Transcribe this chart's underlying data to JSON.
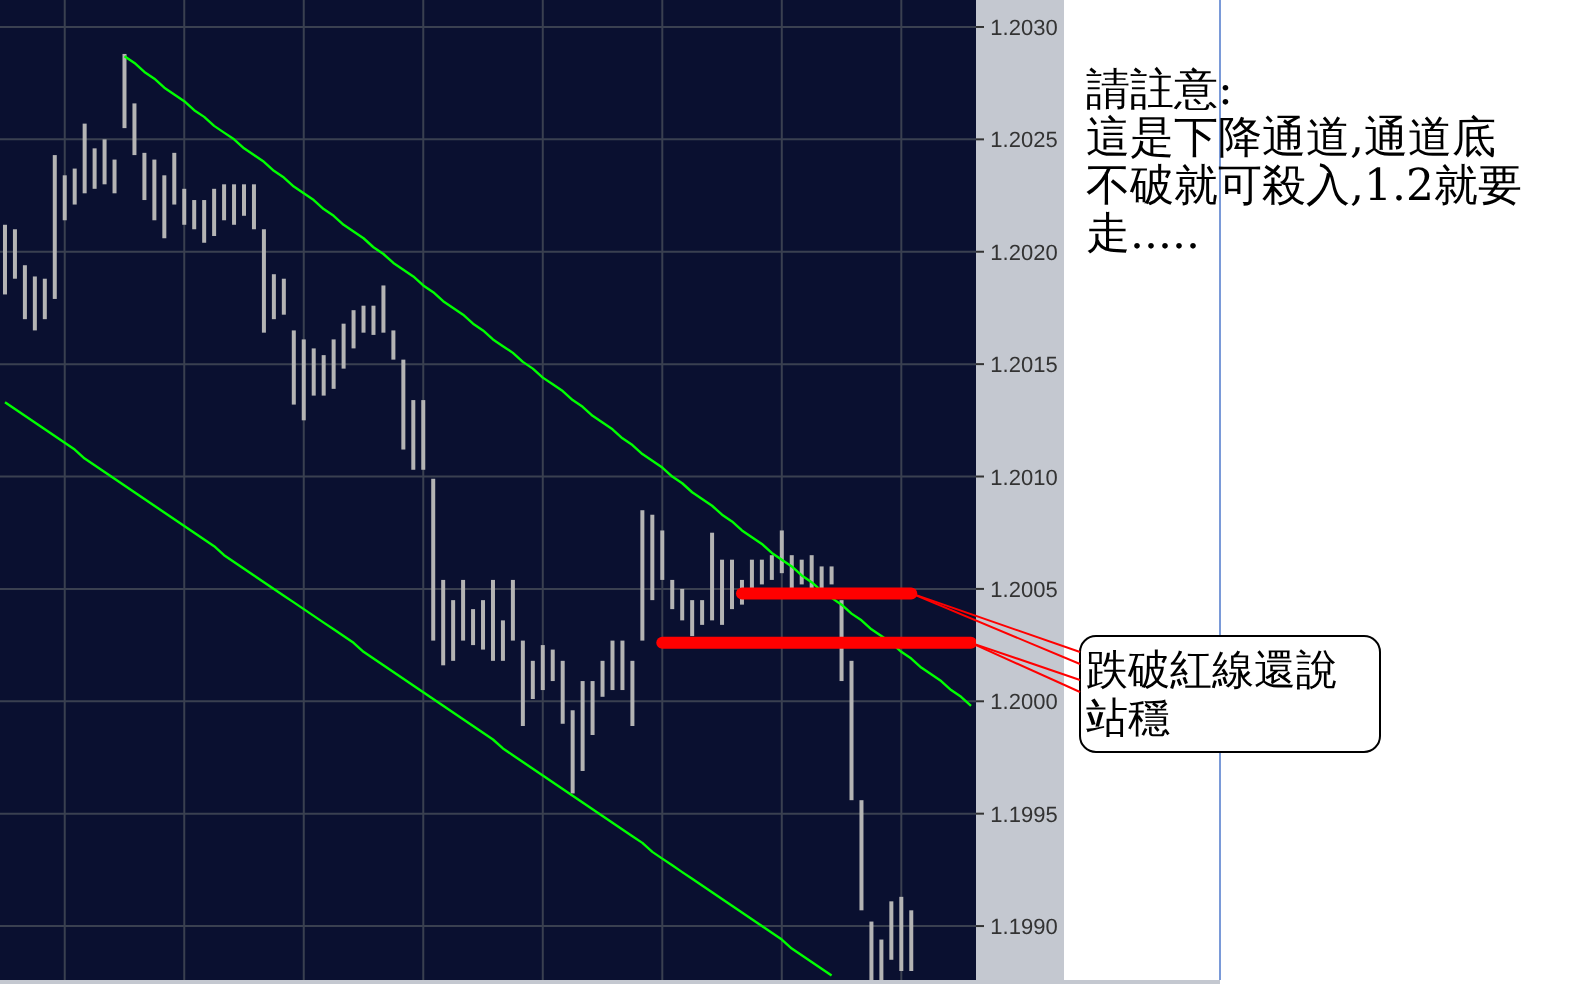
{
  "chart_data": {
    "type": "bar",
    "categories": [
      null,
      null,
      null,
      null,
      null,
      null,
      null,
      null,
      null,
      null,
      null,
      null,
      null,
      null,
      null,
      null,
      null,
      null,
      null,
      null,
      null,
      null,
      null,
      null,
      null,
      null,
      null,
      null,
      null,
      null,
      null,
      null,
      null,
      null,
      null,
      null,
      null,
      null,
      null,
      null,
      null,
      null,
      null,
      null,
      null,
      null,
      null,
      null,
      null,
      null,
      null,
      null,
      null,
      null,
      null,
      null,
      null,
      null,
      null,
      null,
      null,
      null,
      null,
      null,
      null,
      null,
      null,
      null,
      null,
      null,
      null,
      null,
      null,
      null,
      null,
      null,
      null,
      null,
      null,
      null,
      null,
      null,
      null,
      null,
      null,
      null,
      null,
      null,
      null,
      null,
      null,
      null,
      null,
      null,
      null,
      null,
      null,
      null
    ],
    "series": [
      {
        "color": "#b4b4b4",
        "base": [
          1.20181,
          1.20188,
          1.2017,
          1.20165,
          1.2017,
          1.20179,
          1.20214,
          1.20221,
          1.20226,
          1.20228,
          1.2023,
          1.20226,
          1.20255,
          1.20243,
          1.20223,
          1.20214,
          1.20206,
          1.20221,
          1.20212,
          1.2021,
          1.20204,
          1.20207,
          1.20214,
          1.20212,
          1.20216,
          1.2021,
          1.20164,
          1.2017,
          1.20172,
          1.20132,
          1.20125,
          1.20136,
          1.20136,
          1.20139,
          1.20148,
          1.20157,
          1.20164,
          1.20163,
          1.20164,
          1.20152,
          1.20112,
          1.20103,
          1.20103,
          1.20027,
          1.20016,
          1.20018,
          1.20027,
          1.20025,
          1.20023,
          1.20018,
          1.20018,
          1.20027,
          1.19989,
          1.20001,
          1.20005,
          1.20009,
          1.1999,
          1.19959,
          1.19969,
          1.19985,
          1.20002,
          1.20005,
          1.20005,
          1.19989,
          1.20027,
          1.20045,
          1.20054,
          1.20041,
          1.20036,
          1.20029,
          1.20034,
          1.20036,
          1.20034,
          1.20041,
          1.20043,
          1.2005,
          1.20052,
          1.20054,
          1.20057,
          1.2005,
          1.20052,
          1.2005,
          1.2005,
          1.20052,
          1.20009,
          1.19956,
          1.19907,
          1.19876,
          1.19876,
          1.19885,
          1.1988,
          1.1988,
          null,
          null,
          null,
          null,
          null,
          null
        ],
        "values": [
          0.00031,
          0.00022,
          0.00024,
          0.00024,
          0.00018,
          0.00064,
          0.0002,
          0.00016,
          0.00031,
          0.00018,
          0.0002,
          0.00015,
          0.00033,
          0.00023,
          0.00021,
          0.00027,
          0.00028,
          0.00023,
          0.00016,
          0.00013,
          0.00019,
          0.00021,
          0.00016,
          0.00018,
          0.00014,
          0.0002,
          0.00046,
          0.0002,
          0.00016,
          0.00033,
          0.00036,
          0.00021,
          0.00018,
          0.00022,
          0.0002,
          0.00017,
          0.00012,
          0.00013,
          0.00021,
          0.00013,
          0.0004,
          0.00031,
          0.00031,
          0.00072,
          0.00038,
          0.00027,
          0.00027,
          0.00016,
          0.00022,
          0.00036,
          0.00018,
          0.00027,
          0.00038,
          0.00017,
          0.0002,
          0.00014,
          0.00028,
          0.00037,
          0.0004,
          0.00024,
          0.00016,
          0.00022,
          0.00022,
          0.00029,
          0.00058,
          0.00038,
          0.00022,
          0.00013,
          0.00014,
          0.00016,
          0.00011,
          0.00039,
          0.00029,
          0.00022,
          0.00011,
          0.00013,
          0.00011,
          0.00011,
          0.00019,
          0.00015,
          0.00011,
          0.00015,
          0.0001,
          8e-05,
          0.00036,
          0.00062,
          0.00049,
          0.00026,
          0.00018,
          0.00026,
          0.00033,
          0.00027,
          null,
          null,
          null,
          null,
          null,
          null
        ]
      },
      {
        "type": "line",
        "color": "#00ff00",
        "values": [
          null,
          null,
          null,
          null,
          null,
          null,
          null,
          null,
          null,
          null,
          null,
          null,
          1.20287,
          1.20284,
          1.2028,
          1.20277,
          1.20273,
          1.2027,
          1.20267,
          1.20263,
          1.2026,
          1.20256,
          1.20253,
          1.2025,
          1.20246,
          1.20243,
          1.2024,
          1.20236,
          1.20233,
          1.20229,
          1.20226,
          1.20223,
          1.20219,
          1.20216,
          1.20212,
          1.20209,
          1.20206,
          1.20202,
          1.20199,
          1.20195,
          1.20192,
          1.20189,
          1.20185,
          1.20182,
          1.20178,
          1.20175,
          1.20172,
          1.20168,
          1.20165,
          1.20161,
          1.20158,
          1.20155,
          1.20151,
          1.20148,
          1.20144,
          1.20141,
          1.20138,
          1.20134,
          1.20131,
          1.20127,
          1.20124,
          1.20121,
          1.20117,
          1.20114,
          1.2011,
          1.20107,
          1.20104,
          1.201,
          1.20097,
          1.20093,
          1.2009,
          1.20087,
          1.20083,
          1.2008,
          1.20076,
          1.20073,
          1.2007,
          1.20066,
          1.20063,
          1.2006,
          1.20056,
          1.20053,
          1.20049,
          1.20046,
          1.20043,
          1.20039,
          1.20036,
          1.20032,
          1.20029,
          1.20026,
          1.20022,
          1.20019,
          1.20015,
          1.20012,
          1.20009,
          1.20005,
          1.20002,
          1.19998
        ]
      },
      {
        "type": "line",
        "color": "#00ff00",
        "values": [
          1.20133,
          1.2013,
          1.20127,
          1.20124,
          1.20121,
          1.20118,
          1.20115,
          1.20112,
          1.20108,
          1.20105,
          1.20102,
          1.20099,
          1.20096,
          1.20093,
          1.2009,
          1.20087,
          1.20084,
          1.20081,
          1.20078,
          1.20075,
          1.20072,
          1.20069,
          1.20065,
          1.20062,
          1.20059,
          1.20056,
          1.20053,
          1.2005,
          1.20047,
          1.20044,
          1.20041,
          1.20038,
          1.20035,
          1.20032,
          1.20029,
          1.20026,
          1.20022,
          1.20019,
          1.20016,
          1.20013,
          1.2001,
          1.20007,
          1.20004,
          1.20001,
          1.19998,
          1.19995,
          1.19992,
          1.19989,
          1.19986,
          1.19983,
          1.19979,
          1.19976,
          1.19973,
          1.1997,
          1.19967,
          1.19964,
          1.19961,
          1.19958,
          1.19955,
          1.19952,
          1.19949,
          1.19946,
          1.19943,
          1.1994,
          1.19937,
          1.19933,
          1.1993,
          1.19927,
          1.19924,
          1.19921,
          1.19918,
          1.19915,
          1.19912,
          1.19909,
          1.19906,
          1.19903,
          1.199,
          1.19897,
          1.19894,
          1.1989,
          1.19887,
          1.19884,
          1.19881,
          1.19878,
          null,
          null,
          null,
          null,
          null,
          null,
          null,
          null,
          null,
          null,
          null,
          null,
          null,
          null
        ]
      },
      {
        "type": "line",
        "color": "#ff0000",
        "values": [
          null,
          null,
          null,
          null,
          null,
          null,
          null,
          null,
          null,
          null,
          null,
          null,
          null,
          null,
          null,
          null,
          null,
          null,
          null,
          null,
          null,
          null,
          null,
          null,
          null,
          null,
          null,
          null,
          null,
          null,
          null,
          null,
          null,
          null,
          null,
          null,
          null,
          null,
          null,
          null,
          null,
          null,
          null,
          null,
          null,
          null,
          null,
          null,
          null,
          null,
          null,
          null,
          null,
          null,
          null,
          null,
          null,
          null,
          null,
          null,
          null,
          null,
          null,
          null,
          null,
          null,
          null,
          null,
          null,
          null,
          null,
          null,
          null,
          null,
          1.20048,
          1.20048,
          1.20048,
          1.20048,
          1.20048,
          1.20048,
          1.20048,
          1.20048,
          1.20048,
          1.20048,
          1.20048,
          1.20048,
          1.20048,
          1.20048,
          1.20048,
          1.20048,
          1.20048,
          1.20048,
          null,
          null,
          null,
          null,
          null,
          null
        ]
      },
      {
        "type": "line",
        "color": "#ff0000",
        "values": [
          null,
          null,
          null,
          null,
          null,
          null,
          null,
          null,
          null,
          null,
          null,
          null,
          null,
          null,
          null,
          null,
          null,
          null,
          null,
          null,
          null,
          null,
          null,
          null,
          null,
          null,
          null,
          null,
          null,
          null,
          null,
          null,
          null,
          null,
          null,
          null,
          null,
          null,
          null,
          null,
          null,
          null,
          null,
          null,
          null,
          null,
          null,
          null,
          null,
          null,
          null,
          null,
          null,
          null,
          null,
          null,
          null,
          null,
          null,
          null,
          null,
          null,
          null,
          null,
          null,
          null,
          1.20026,
          1.20026,
          1.20026,
          1.20026,
          1.20026,
          1.20026,
          1.20026,
          1.20026,
          1.20026,
          1.20026,
          1.20026,
          1.20026,
          1.20026,
          1.20026,
          1.20026,
          1.20026,
          1.20026,
          1.20026,
          1.20026,
          1.20026,
          1.20026,
          1.20026,
          1.20026,
          1.20026,
          1.20026,
          1.20026,
          1.20026,
          1.20026,
          1.20026,
          1.20026,
          1.20026,
          1.20026
        ]
      }
    ],
    "ylim": [
      1.19876,
      1.20312
    ],
    "yticks": [
      {
        "value": 1.199,
        "label": "1.1990"
      },
      {
        "value": 1.1995,
        "label": "1.1995"
      },
      {
        "value": 1.2,
        "label": "1.2000"
      },
      {
        "value": 1.2005,
        "label": "1.2005"
      },
      {
        "value": 1.201,
        "label": "1.2010"
      },
      {
        "value": 1.2015,
        "label": "1.2015"
      },
      {
        "value": 1.202,
        "label": "1.2020"
      },
      {
        "value": 1.2025,
        "label": "1.2025"
      },
      {
        "value": 1.203,
        "label": "1.2030"
      }
    ],
    "grid": true,
    "annotations": [
      "請註意:\n這是下降通道,通道底不破就可殺入,1.2就要走.....",
      "跌破紅線還說站穩"
    ]
  }
}
